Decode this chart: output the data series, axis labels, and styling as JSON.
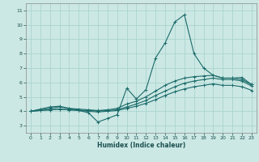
{
  "xlabel": "Humidex (Indice chaleur)",
  "xlim": [
    -0.5,
    23.5
  ],
  "ylim": [
    2.5,
    11.5
  ],
  "xticks": [
    0,
    1,
    2,
    3,
    4,
    5,
    6,
    7,
    8,
    9,
    10,
    11,
    12,
    13,
    14,
    15,
    16,
    17,
    18,
    19,
    20,
    21,
    22,
    23
  ],
  "yticks": [
    3,
    4,
    5,
    6,
    7,
    8,
    9,
    10,
    11
  ],
  "bg_color": "#cce8e4",
  "grid_color": "#aad4cf",
  "line_color": "#1a6b6a",
  "lines": [
    {
      "x": [
        0,
        1,
        2,
        3,
        4,
        5,
        6,
        7,
        8,
        9,
        10,
        11,
        12,
        13,
        14,
        15,
        16,
        17,
        18,
        19,
        20,
        21,
        22,
        23
      ],
      "y": [
        4.0,
        4.15,
        4.3,
        4.35,
        4.2,
        4.05,
        3.9,
        3.25,
        3.5,
        3.75,
        5.6,
        4.85,
        5.5,
        7.7,
        8.75,
        10.2,
        10.7,
        8.0,
        7.0,
        6.5,
        6.3,
        6.3,
        6.35,
        5.85
      ]
    },
    {
      "x": [
        0,
        1,
        2,
        3,
        4,
        5,
        6,
        7,
        8,
        9,
        10,
        11,
        12,
        13,
        14,
        15,
        16,
        17,
        18,
        19,
        20,
        21,
        22,
        23
      ],
      "y": [
        4.0,
        4.1,
        4.2,
        4.3,
        4.2,
        4.15,
        4.1,
        4.05,
        4.1,
        4.2,
        4.5,
        4.7,
        5.0,
        5.4,
        5.8,
        6.1,
        6.3,
        6.4,
        6.45,
        6.5,
        6.3,
        6.3,
        6.2,
        5.85
      ]
    },
    {
      "x": [
        0,
        1,
        2,
        3,
        4,
        5,
        6,
        7,
        8,
        9,
        10,
        11,
        12,
        13,
        14,
        15,
        16,
        17,
        18,
        19,
        20,
        21,
        22,
        23
      ],
      "y": [
        4.0,
        4.05,
        4.1,
        4.15,
        4.1,
        4.08,
        4.05,
        4.02,
        4.05,
        4.1,
        4.3,
        4.5,
        4.75,
        5.1,
        5.4,
        5.7,
        5.95,
        6.1,
        6.2,
        6.3,
        6.2,
        6.2,
        6.1,
        5.75
      ]
    },
    {
      "x": [
        0,
        1,
        2,
        3,
        4,
        5,
        6,
        7,
        8,
        9,
        10,
        11,
        12,
        13,
        14,
        15,
        16,
        17,
        18,
        19,
        20,
        21,
        22,
        23
      ],
      "y": [
        4.0,
        4.05,
        4.1,
        4.15,
        4.1,
        4.05,
        4.0,
        3.95,
        4.0,
        4.05,
        4.2,
        4.35,
        4.55,
        4.8,
        5.1,
        5.35,
        5.55,
        5.7,
        5.8,
        5.9,
        5.8,
        5.8,
        5.7,
        5.45
      ]
    }
  ]
}
